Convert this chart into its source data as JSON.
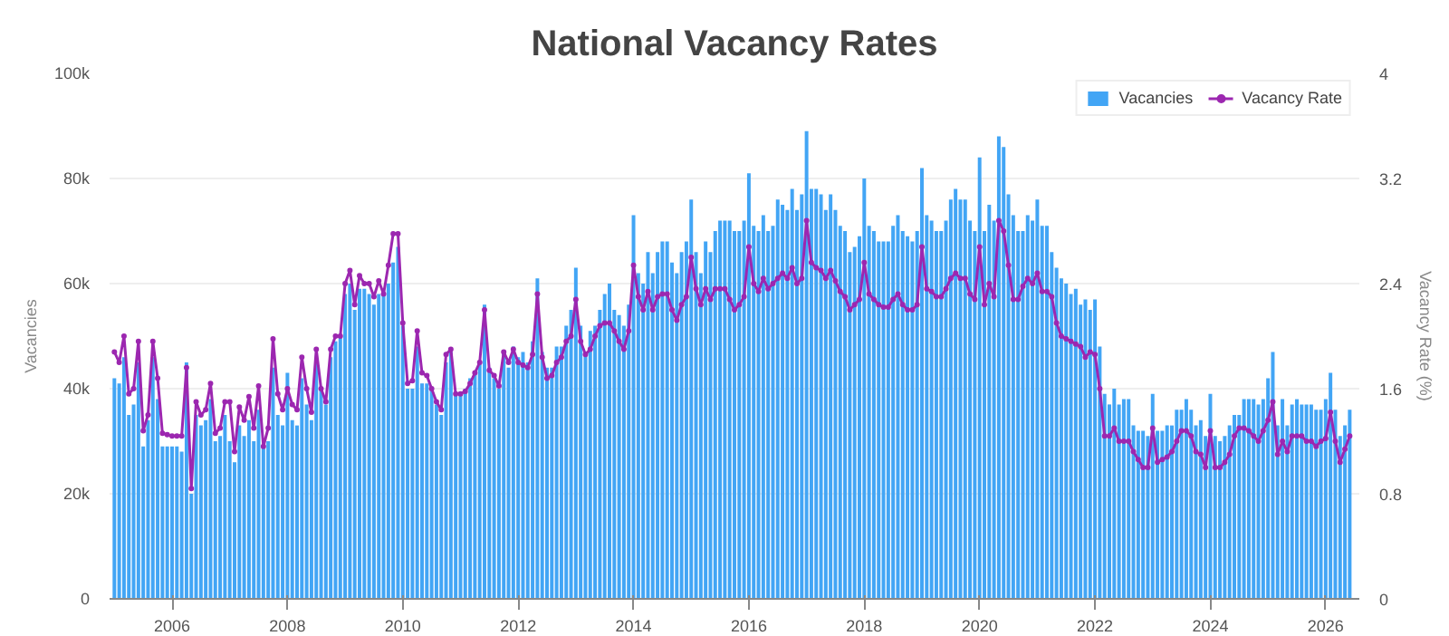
{
  "chart_data": {
    "type": "bar",
    "title": "National Vacancy Rates",
    "ylabel": "Vacancies",
    "y2label": "Vacancy Rate (%)",
    "x": [
      "2005-01",
      "2005-02",
      "2005-03",
      "2005-04",
      "2005-05",
      "2005-06",
      "2005-07",
      "2005-08",
      "2005-09",
      "2005-10",
      "2005-11",
      "2005-12",
      "2006-01",
      "2006-02",
      "2006-03",
      "2006-04",
      "2006-05",
      "2006-06",
      "2006-07",
      "2006-08",
      "2006-09",
      "2006-10",
      "2006-11",
      "2006-12",
      "2007-01",
      "2007-02",
      "2007-03",
      "2007-04",
      "2007-05",
      "2007-06",
      "2007-07",
      "2007-08",
      "2007-09",
      "2007-10",
      "2007-11",
      "2007-12",
      "2008-01",
      "2008-02",
      "2008-03",
      "2008-04",
      "2008-05",
      "2008-06",
      "2008-07",
      "2008-08",
      "2008-09",
      "2008-10",
      "2008-11",
      "2008-12",
      "2009-01",
      "2009-02",
      "2009-03",
      "2009-04",
      "2009-05",
      "2009-06",
      "2009-07",
      "2009-08",
      "2009-09",
      "2009-10",
      "2009-11",
      "2009-12",
      "2010-01",
      "2010-02",
      "2010-03",
      "2010-04",
      "2010-05",
      "2010-06",
      "2010-07",
      "2010-08",
      "2010-09",
      "2010-10",
      "2010-11",
      "2010-12",
      "2011-01",
      "2011-02",
      "2011-03",
      "2011-04",
      "2011-05",
      "2011-06",
      "2011-07",
      "2011-08",
      "2011-09",
      "2011-10",
      "2011-11",
      "2011-12",
      "2012-01",
      "2012-02",
      "2012-03",
      "2012-04",
      "2012-05",
      "2012-06",
      "2012-07",
      "2012-08",
      "2012-09",
      "2012-10",
      "2012-11",
      "2012-12",
      "2013-01",
      "2013-02",
      "2013-03",
      "2013-04",
      "2013-05",
      "2013-06",
      "2013-07",
      "2013-08",
      "2013-09",
      "2013-10",
      "2013-11",
      "2013-12",
      "2014-01",
      "2014-02",
      "2014-03",
      "2014-04",
      "2014-05",
      "2014-06",
      "2014-07",
      "2014-08",
      "2014-09",
      "2014-10",
      "2014-11",
      "2014-12",
      "2015-01",
      "2015-02",
      "2015-03",
      "2015-04",
      "2015-05",
      "2015-06",
      "2015-07",
      "2015-08",
      "2015-09",
      "2015-10",
      "2015-11",
      "2015-12",
      "2016-01",
      "2016-02",
      "2016-03",
      "2016-04",
      "2016-05",
      "2016-06",
      "2016-07",
      "2016-08",
      "2016-09",
      "2016-10",
      "2016-11",
      "2016-12",
      "2017-01",
      "2017-02",
      "2017-03",
      "2017-04",
      "2017-05",
      "2017-06",
      "2017-07",
      "2017-08",
      "2017-09",
      "2017-10",
      "2017-11",
      "2017-12",
      "2018-01",
      "2018-02",
      "2018-03",
      "2018-04",
      "2018-05",
      "2018-06",
      "2018-07",
      "2018-08",
      "2018-09",
      "2018-10",
      "2018-11",
      "2018-12",
      "2019-01",
      "2019-02",
      "2019-03",
      "2019-04",
      "2019-05",
      "2019-06",
      "2019-07",
      "2019-08",
      "2019-09",
      "2019-10",
      "2019-11",
      "2019-12",
      "2020-01",
      "2020-02",
      "2020-03",
      "2020-04",
      "2020-05",
      "2020-06",
      "2020-07",
      "2020-08",
      "2020-09",
      "2020-10",
      "2020-11",
      "2020-12",
      "2021-01",
      "2021-02",
      "2021-03",
      "2021-04",
      "2021-05",
      "2021-06",
      "2021-07",
      "2021-08",
      "2021-09",
      "2021-10",
      "2021-11",
      "2021-12",
      "2022-01",
      "2022-02",
      "2022-03",
      "2022-04",
      "2022-05",
      "2022-06",
      "2022-07",
      "2022-08",
      "2022-09",
      "2022-10",
      "2022-11",
      "2022-12",
      "2023-01",
      "2023-02",
      "2023-03",
      "2023-04",
      "2023-05",
      "2023-06",
      "2023-07",
      "2023-08",
      "2023-09",
      "2023-10",
      "2023-11",
      "2023-12",
      "2024-01",
      "2024-02",
      "2024-03",
      "2024-04",
      "2024-05",
      "2024-06",
      "2024-07",
      "2024-08",
      "2024-09",
      "2024-10",
      "2024-11",
      "2024-12",
      "2025-01",
      "2025-02",
      "2025-03",
      "2025-04",
      "2025-05",
      "2025-06",
      "2025-07",
      "2025-08",
      "2025-09",
      "2025-10",
      "2025-11",
      "2025-12",
      "2026-01",
      "2026-02",
      "2026-03",
      "2026-04",
      "2026-05",
      "2026-06"
    ],
    "series": [
      {
        "name": "Vacancies",
        "type": "bar",
        "color": "#42a5f5",
        "values": [
          42000,
          41000,
          46000,
          35000,
          37000,
          45000,
          29000,
          34000,
          46000,
          38000,
          29000,
          29000,
          29000,
          29000,
          28000,
          45000,
          20000,
          35000,
          33000,
          34000,
          38000,
          30000,
          31000,
          35000,
          30000,
          26000,
          33000,
          31000,
          34000,
          30000,
          36000,
          29000,
          30000,
          44000,
          35000,
          33000,
          43000,
          34000,
          33000,
          42000,
          37000,
          34000,
          45000,
          40000,
          37000,
          46000,
          49000,
          50000,
          58000,
          60000,
          55000,
          59000,
          59000,
          58000,
          56000,
          58000,
          58000,
          60000,
          64000,
          67000,
          52000,
          40000,
          40000,
          48000,
          41000,
          41000,
          40000,
          37000,
          35000,
          45000,
          47000,
          39000,
          39000,
          40000,
          42000,
          43000,
          45000,
          56000,
          44000,
          42000,
          40000,
          47000,
          44000,
          48000,
          46000,
          47000,
          45000,
          49000,
          61000,
          47000,
          44000,
          44000,
          48000,
          48000,
          52000,
          55000,
          63000,
          52000,
          47000,
          51000,
          52000,
          55000,
          58000,
          60000,
          55000,
          54000,
          52000,
          56000,
          73000,
          62000,
          60000,
          66000,
          62000,
          66000,
          68000,
          68000,
          64000,
          62000,
          66000,
          68000,
          76000,
          66000,
          62000,
          68000,
          66000,
          70000,
          72000,
          72000,
          72000,
          70000,
          70000,
          72000,
          81000,
          71000,
          70000,
          73000,
          70000,
          71000,
          76000,
          75000,
          74000,
          78000,
          74000,
          77000,
          89000,
          78000,
          78000,
          77000,
          74000,
          77000,
          74000,
          71000,
          70000,
          66000,
          67000,
          69000,
          80000,
          71000,
          70000,
          68000,
          68000,
          68000,
          71000,
          73000,
          70000,
          69000,
          68000,
          70000,
          82000,
          73000,
          72000,
          70000,
          70000,
          72000,
          76000,
          78000,
          76000,
          76000,
          72000,
          70000,
          84000,
          70000,
          75000,
          72000,
          88000,
          86000,
          77000,
          73000,
          70000,
          70000,
          73000,
          72000,
          76000,
          71000,
          71000,
          66000,
          63000,
          61000,
          60000,
          58000,
          59000,
          56000,
          57000,
          55000,
          57000,
          48000,
          39000,
          37000,
          40000,
          37000,
          38000,
          38000,
          33000,
          32000,
          32000,
          31000,
          39000,
          32000,
          32000,
          33000,
          33000,
          36000,
          36000,
          38000,
          36000,
          33000,
          34000,
          31000,
          39000,
          31000,
          30000,
          31000,
          33000,
          35000,
          35000,
          38000,
          38000,
          38000,
          37000,
          38000,
          42000,
          47000,
          33000,
          38000,
          33000,
          37000,
          38000,
          37000,
          37000,
          37000,
          36000,
          36000,
          38000,
          43000,
          36000,
          31000,
          33000,
          36000
        ]
      },
      {
        "name": "Vacancy Rate",
        "type": "line",
        "axis": "y2",
        "color": "#9c27b0",
        "marker": "circle",
        "values": [
          1.88,
          1.8,
          2.0,
          1.56,
          1.6,
          1.96,
          1.28,
          1.4,
          1.96,
          1.68,
          1.26,
          1.25,
          1.24,
          1.24,
          1.24,
          1.76,
          0.84,
          1.5,
          1.4,
          1.44,
          1.64,
          1.26,
          1.3,
          1.5,
          1.5,
          1.12,
          1.46,
          1.36,
          1.54,
          1.3,
          1.62,
          1.16,
          1.3,
          1.98,
          1.56,
          1.44,
          1.6,
          1.48,
          1.44,
          1.84,
          1.6,
          1.42,
          1.9,
          1.6,
          1.5,
          1.9,
          2.0,
          2.0,
          2.4,
          2.5,
          2.24,
          2.46,
          2.4,
          2.4,
          2.3,
          2.42,
          2.32,
          2.54,
          2.78,
          2.78,
          2.1,
          1.64,
          1.66,
          2.04,
          1.72,
          1.7,
          1.6,
          1.5,
          1.44,
          1.86,
          1.9,
          1.56,
          1.56,
          1.58,
          1.64,
          1.72,
          1.8,
          2.2,
          1.74,
          1.7,
          1.62,
          1.88,
          1.8,
          1.9,
          1.8,
          1.78,
          1.76,
          1.86,
          2.32,
          1.84,
          1.68,
          1.7,
          1.8,
          1.84,
          1.96,
          2.0,
          2.28,
          1.96,
          1.86,
          1.9,
          2.0,
          2.08,
          2.1,
          2.1,
          2.04,
          1.96,
          1.9,
          2.04,
          2.54,
          2.3,
          2.2,
          2.34,
          2.2,
          2.3,
          2.32,
          2.32,
          2.2,
          2.12,
          2.24,
          2.3,
          2.6,
          2.36,
          2.24,
          2.36,
          2.28,
          2.36,
          2.36,
          2.36,
          2.28,
          2.2,
          2.24,
          2.3,
          2.68,
          2.4,
          2.34,
          2.44,
          2.36,
          2.4,
          2.44,
          2.48,
          2.44,
          2.52,
          2.4,
          2.44,
          2.88,
          2.56,
          2.52,
          2.5,
          2.44,
          2.5,
          2.42,
          2.34,
          2.3,
          2.2,
          2.24,
          2.28,
          2.56,
          2.32,
          2.28,
          2.24,
          2.22,
          2.22,
          2.28,
          2.32,
          2.24,
          2.2,
          2.2,
          2.24,
          2.68,
          2.36,
          2.34,
          2.3,
          2.3,
          2.36,
          2.44,
          2.48,
          2.44,
          2.44,
          2.32,
          2.28,
          2.68,
          2.24,
          2.4,
          2.3,
          2.88,
          2.8,
          2.54,
          2.28,
          2.28,
          2.38,
          2.44,
          2.4,
          2.48,
          2.34,
          2.34,
          2.3,
          2.1,
          2.0,
          1.98,
          1.96,
          1.94,
          1.92,
          1.84,
          1.88,
          1.86,
          1.6,
          1.24,
          1.24,
          1.3,
          1.2,
          1.2,
          1.2,
          1.12,
          1.06,
          1.0,
          1.0,
          1.3,
          1.04,
          1.06,
          1.08,
          1.12,
          1.2,
          1.28,
          1.28,
          1.24,
          1.12,
          1.1,
          1.0,
          1.28,
          1.0,
          1.0,
          1.04,
          1.1,
          1.24,
          1.3,
          1.3,
          1.28,
          1.24,
          1.2,
          1.28,
          1.36,
          1.5,
          1.1,
          1.2,
          1.12,
          1.24,
          1.24,
          1.24,
          1.2,
          1.2,
          1.16,
          1.2,
          1.22,
          1.42,
          1.2,
          1.04,
          1.14,
          1.24
        ]
      }
    ],
    "xlim": [
      "2004-12-01",
      "2026-08-01"
    ],
    "xticks": [
      {
        "value": "2006-01-01",
        "label": "2006"
      },
      {
        "value": "2008-01-01",
        "label": "2008"
      },
      {
        "value": "2010-01-01",
        "label": "2010"
      },
      {
        "value": "2012-01-01",
        "label": "2012"
      },
      {
        "value": "2014-01-01",
        "label": "2014"
      },
      {
        "value": "2016-01-01",
        "label": "2016"
      },
      {
        "value": "2018-01-01",
        "label": "2018"
      },
      {
        "value": "2020-01-01",
        "label": "2020"
      },
      {
        "value": "2022-01-01",
        "label": "2022"
      },
      {
        "value": "2024-01-01",
        "label": "2024"
      },
      {
        "value": "2026-01-01",
        "label": "2026"
      }
    ],
    "ylim": [
      0,
      100000
    ],
    "yticks": [
      {
        "value": 0,
        "label": "0"
      },
      {
        "value": 20000,
        "label": "20k"
      },
      {
        "value": 40000,
        "label": "40k"
      },
      {
        "value": 60000,
        "label": "60k"
      },
      {
        "value": 80000,
        "label": "80k"
      },
      {
        "value": 100000,
        "label": "100k"
      }
    ],
    "y2lim": [
      0,
      4
    ],
    "y2ticks": [
      0,
      0.8,
      1.6,
      2.4,
      3.2,
      4
    ],
    "grid": "y",
    "legend": "top right"
  }
}
